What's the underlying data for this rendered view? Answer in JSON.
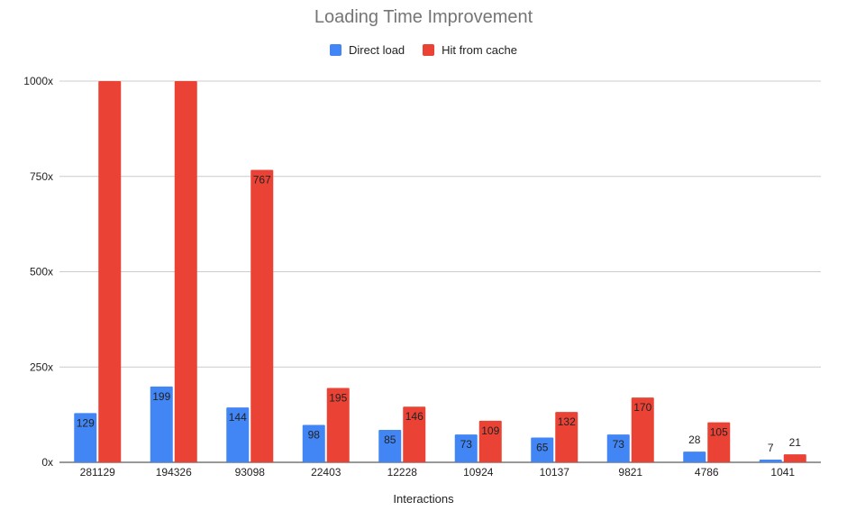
{
  "chart_data": {
    "type": "bar",
    "title": "Loading Time Improvement",
    "xlabel": "Interactions",
    "ylabel": "",
    "categories": [
      "281129",
      "194326",
      "93098",
      "22403",
      "12228",
      "10924",
      "10137",
      "9821",
      "4786",
      "1041"
    ],
    "series": [
      {
        "name": "Direct load",
        "color": "#4285F4",
        "values": [
          129,
          199,
          144,
          98,
          85,
          73,
          65,
          73,
          28,
          7
        ],
        "labels": [
          "129",
          "199",
          "144",
          "98",
          "85",
          "73",
          "65",
          "73",
          "28",
          "7"
        ]
      },
      {
        "name": "Hit from cache",
        "color": "#EA4335",
        "values": [
          1000,
          1000,
          767,
          195,
          146,
          109,
          132,
          170,
          105,
          21
        ],
        "labels": [
          "",
          "",
          "767",
          "195",
          "146",
          "109",
          "132",
          "170",
          "105",
          "21"
        ]
      }
    ],
    "yticks": [
      {
        "value": 0,
        "label": "0x"
      },
      {
        "value": 250,
        "label": "250x"
      },
      {
        "value": 500,
        "label": "500x"
      },
      {
        "value": 750,
        "label": "750x"
      },
      {
        "value": 1000,
        "label": "1000x"
      }
    ],
    "ylim": [
      0,
      1000
    ],
    "grid": true,
    "legend_position": "top"
  }
}
